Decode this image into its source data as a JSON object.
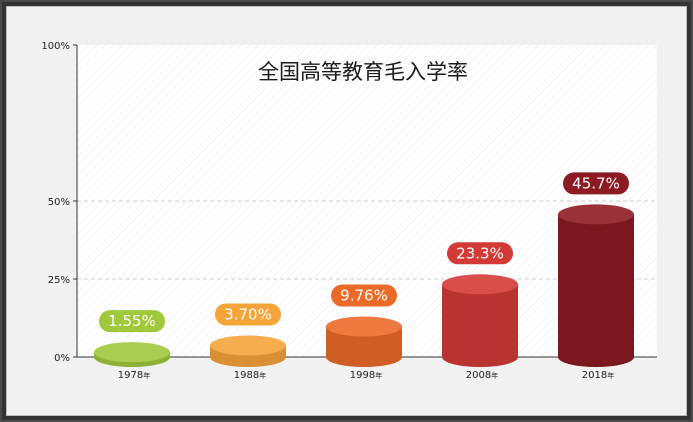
{
  "chart_data": {
    "type": "bar",
    "title": "全国高等教育毛入学率",
    "categories": [
      "1978年",
      "1988年",
      "1998年",
      "2008年",
      "2018年"
    ],
    "category_years": [
      "1978",
      "1988",
      "1998",
      "2008",
      "2018"
    ],
    "category_suffix": "年",
    "values": [
      1.55,
      3.7,
      9.76,
      23.3,
      45.7
    ],
    "value_labels": [
      "1.55%",
      "3.70%",
      "9.76%",
      "23.3%",
      "45.7%"
    ],
    "colors": [
      "#9fc93b",
      "#f5a43a",
      "#ec6a28",
      "#d23a37",
      "#8c1a22"
    ],
    "ylim": [
      0,
      100
    ],
    "y_ticks": [
      0,
      25,
      50,
      100
    ],
    "y_tick_labels": [
      "0%",
      "25%",
      "50%",
      "100%"
    ],
    "grid": "dashed at 25% and 50%",
    "legend": "none"
  }
}
